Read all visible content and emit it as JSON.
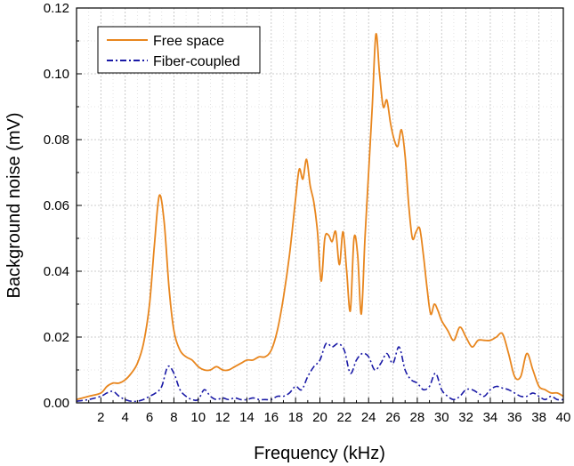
{
  "chart_data": {
    "type": "line",
    "title": "",
    "xlabel": "Frequency (kHz)",
    "ylabel": "Background noise (mV)",
    "xlim": [
      0,
      40
    ],
    "ylim": [
      0,
      0.12
    ],
    "xticks": [
      "2",
      "4",
      "6",
      "8",
      "10",
      "12",
      "14",
      "16",
      "18",
      "20",
      "22",
      "24",
      "26",
      "28",
      "30",
      "32",
      "34",
      "36",
      "38",
      "40"
    ],
    "yticks": [
      "0.00",
      "0.02",
      "0.04",
      "0.06",
      "0.08",
      "0.10",
      "0.12"
    ],
    "grid": true,
    "legend_position": "top-left",
    "series": [
      {
        "name": "Free space",
        "color": "#E8861E",
        "style": "solid",
        "x": [
          0,
          1,
          2,
          2.5,
          3,
          3.5,
          4,
          4.5,
          5,
          5.5,
          6,
          6.4,
          6.8,
          7.2,
          7.6,
          8,
          8.5,
          9,
          9.5,
          10,
          10.5,
          11,
          11.5,
          12,
          12.5,
          13,
          13.5,
          14,
          14.5,
          15,
          15.5,
          16,
          16.5,
          17,
          17.5,
          18,
          18.3,
          18.6,
          18.9,
          19.2,
          19.5,
          19.8,
          20.1,
          20.4,
          20.7,
          21,
          21.3,
          21.6,
          21.9,
          22.2,
          22.5,
          22.8,
          23.1,
          23.4,
          23.7,
          24,
          24.3,
          24.6,
          24.9,
          25.2,
          25.5,
          25.8,
          26.1,
          26.4,
          26.7,
          27,
          27.3,
          27.6,
          27.9,
          28.2,
          28.5,
          28.8,
          29.1,
          29.4,
          29.7,
          30,
          30.5,
          31,
          31.5,
          32,
          32.5,
          33,
          33.5,
          34,
          34.5,
          35,
          35.5,
          36,
          36.5,
          37,
          37.5,
          38,
          38.5,
          39,
          39.5,
          40
        ],
        "y": [
          0.001,
          0.002,
          0.003,
          0.005,
          0.006,
          0.006,
          0.007,
          0.009,
          0.012,
          0.018,
          0.03,
          0.048,
          0.063,
          0.055,
          0.035,
          0.022,
          0.016,
          0.014,
          0.013,
          0.011,
          0.01,
          0.01,
          0.011,
          0.01,
          0.01,
          0.011,
          0.012,
          0.013,
          0.013,
          0.014,
          0.014,
          0.016,
          0.022,
          0.032,
          0.045,
          0.062,
          0.071,
          0.068,
          0.074,
          0.066,
          0.061,
          0.052,
          0.037,
          0.05,
          0.051,
          0.049,
          0.052,
          0.042,
          0.052,
          0.04,
          0.028,
          0.05,
          0.045,
          0.027,
          0.05,
          0.07,
          0.09,
          0.112,
          0.1,
          0.09,
          0.092,
          0.085,
          0.08,
          0.078,
          0.083,
          0.075,
          0.06,
          0.05,
          0.052,
          0.053,
          0.045,
          0.035,
          0.027,
          0.03,
          0.028,
          0.025,
          0.022,
          0.019,
          0.023,
          0.02,
          0.017,
          0.019,
          0.019,
          0.019,
          0.02,
          0.021,
          0.015,
          0.008,
          0.008,
          0.015,
          0.01,
          0.005,
          0.004,
          0.003,
          0.003,
          0.002
        ]
      },
      {
        "name": "Fiber-coupled",
        "color": "#1A1AA6",
        "style": "dash-dot",
        "x": [
          0,
          1,
          2,
          2.5,
          3,
          3.5,
          4,
          4.5,
          5,
          5.5,
          6,
          6.5,
          7,
          7.5,
          8,
          8.5,
          9,
          9.5,
          10,
          10.5,
          11,
          11.5,
          12,
          12.5,
          13,
          13.5,
          14,
          14.5,
          15,
          15.5,
          16,
          16.5,
          17,
          17.5,
          18,
          18.5,
          19,
          19.5,
          20,
          20.5,
          21,
          21.5,
          22,
          22.5,
          23,
          23.5,
          24,
          24.5,
          25,
          25.5,
          26,
          26.5,
          27,
          27.5,
          28,
          28.5,
          29,
          29.5,
          30,
          30.5,
          31,
          31.5,
          32,
          32.5,
          33,
          33.5,
          34,
          34.5,
          35,
          35.5,
          36,
          36.5,
          37,
          37.5,
          38,
          38.5,
          39,
          39.5,
          40
        ],
        "y": [
          0.0005,
          0.001,
          0.002,
          0.003,
          0.0035,
          0.002,
          0.001,
          0.0005,
          0.0005,
          0.001,
          0.002,
          0.003,
          0.005,
          0.011,
          0.009,
          0.004,
          0.002,
          0.001,
          0.001,
          0.004,
          0.002,
          0.001,
          0.0015,
          0.001,
          0.0015,
          0.001,
          0.001,
          0.0015,
          0.001,
          0.001,
          0.001,
          0.002,
          0.002,
          0.003,
          0.005,
          0.004,
          0.008,
          0.011,
          0.013,
          0.018,
          0.017,
          0.018,
          0.016,
          0.009,
          0.013,
          0.015,
          0.014,
          0.01,
          0.012,
          0.015,
          0.012,
          0.017,
          0.01,
          0.007,
          0.006,
          0.004,
          0.005,
          0.009,
          0.004,
          0.002,
          0.001,
          0.002,
          0.004,
          0.004,
          0.003,
          0.002,
          0.004,
          0.005,
          0.0045,
          0.004,
          0.003,
          0.002,
          0.002,
          0.003,
          0.002,
          0.001,
          0.002,
          0.001,
          0.001
        ]
      }
    ]
  }
}
